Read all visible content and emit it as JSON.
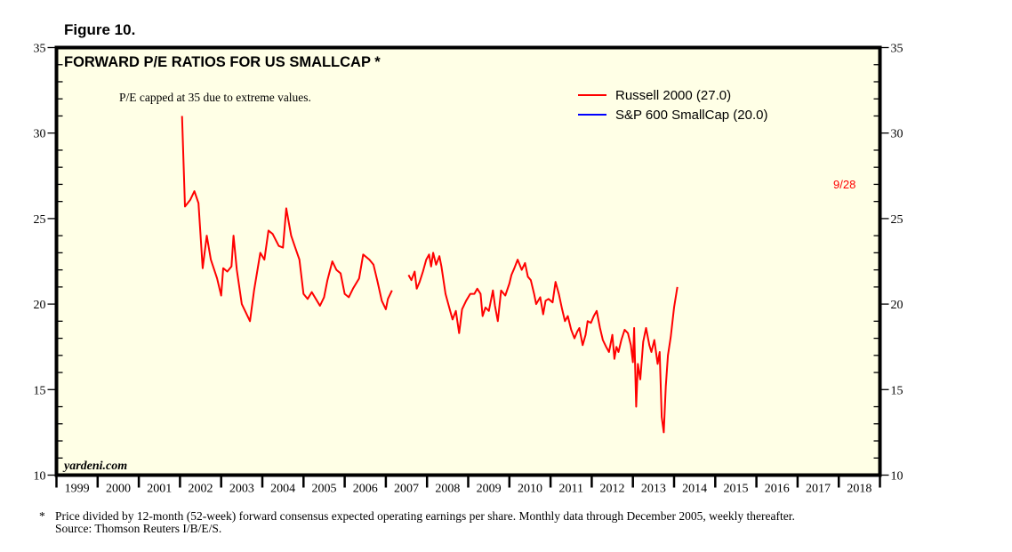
{
  "figure_label": "Figure 10.",
  "footnote": {
    "marker": "*",
    "line1": "Price divided by 12-month (52-week) forward consensus expected operating earnings per share. Monthly data through December 2005, weekly thereafter.",
    "line2": "Source: Thomson Reuters I/B/E/S."
  },
  "chart_data": {
    "type": "line",
    "title": "FORWARD P/E RATIOS FOR US SMALLCAP *",
    "annotation": "P/E capped at 35 due to extreme values.",
    "watermark": "yardeni.com",
    "end_label": "9/28",
    "xlabel": "",
    "ylabel": "",
    "xlim": [
      1999,
      2019
    ],
    "ylim": [
      10,
      35
    ],
    "x_tick_labels": [
      "1999",
      "2000",
      "2001",
      "2002",
      "2003",
      "2004",
      "2005",
      "2006",
      "2007",
      "2008",
      "2009",
      "2010",
      "2011",
      "2012",
      "2013",
      "2014",
      "2015",
      "2016",
      "2017",
      "2018"
    ],
    "y_ticks": [
      10,
      15,
      20,
      25,
      30,
      35
    ],
    "y_tick_labels": [
      "10",
      "15",
      "20",
      "25",
      "30",
      "35"
    ],
    "y_minor_step": 1,
    "grid": false,
    "legend_position": "top-right",
    "background_color": "#ffffe6",
    "series": [
      {
        "name": "Russell 2000 (27.0)",
        "color": "#ff0000",
        "segments": [
          [
            [
              2002.05,
              31.0
            ],
            [
              2002.12,
              25.7
            ],
            [
              2002.25,
              26.1
            ],
            [
              2002.35,
              26.6
            ],
            [
              2002.45,
              25.9
            ],
            [
              2002.55,
              22.1
            ],
            [
              2002.65,
              24.0
            ],
            [
              2002.75,
              22.6
            ],
            [
              2002.9,
              21.5
            ],
            [
              2003.0,
              20.5
            ],
            [
              2003.05,
              22.1
            ],
            [
              2003.15,
              21.9
            ],
            [
              2003.25,
              22.2
            ],
            [
              2003.3,
              24.0
            ],
            [
              2003.38,
              22.0
            ],
            [
              2003.5,
              20.0
            ],
            [
              2003.58,
              19.6
            ],
            [
              2003.7,
              19.0
            ],
            [
              2003.8,
              20.8
            ],
            [
              2003.95,
              23.0
            ],
            [
              2004.05,
              22.6
            ],
            [
              2004.15,
              24.3
            ],
            [
              2004.25,
              24.1
            ],
            [
              2004.4,
              23.4
            ],
            [
              2004.5,
              23.3
            ],
            [
              2004.58,
              25.6
            ],
            [
              2004.7,
              24.0
            ],
            [
              2004.8,
              23.3
            ],
            [
              2004.9,
              22.6
            ],
            [
              2005.0,
              20.6
            ],
            [
              2005.1,
              20.3
            ],
            [
              2005.2,
              20.7
            ],
            [
              2005.3,
              20.3
            ],
            [
              2005.4,
              19.9
            ],
            [
              2005.5,
              20.4
            ],
            [
              2005.58,
              21.4
            ],
            [
              2005.7,
              22.5
            ],
            [
              2005.8,
              22.0
            ],
            [
              2005.9,
              21.8
            ],
            [
              2006.0,
              20.6
            ],
            [
              2006.1,
              20.4
            ],
            [
              2006.2,
              20.9
            ],
            [
              2006.35,
              21.5
            ],
            [
              2006.45,
              22.9
            ],
            [
              2006.6,
              22.6
            ],
            [
              2006.7,
              22.3
            ],
            [
              2006.8,
              21.3
            ],
            [
              2006.9,
              20.2
            ],
            [
              2007.0,
              19.7
            ],
            [
              2007.05,
              20.3
            ],
            [
              2007.15,
              20.8
            ]
          ],
          [
            [
              2007.55,
              21.7
            ],
            [
              2007.62,
              21.4
            ],
            [
              2007.7,
              21.9
            ],
            [
              2007.75,
              20.9
            ],
            [
              2007.82,
              21.3
            ],
            [
              2007.9,
              21.9
            ],
            [
              2007.98,
              22.6
            ],
            [
              2008.05,
              22.9
            ],
            [
              2008.1,
              22.2
            ],
            [
              2008.15,
              23.0
            ],
            [
              2008.22,
              22.3
            ],
            [
              2008.3,
              22.8
            ],
            [
              2008.35,
              22.2
            ],
            [
              2008.45,
              20.6
            ],
            [
              2008.55,
              19.7
            ],
            [
              2008.62,
              19.1
            ],
            [
              2008.7,
              19.6
            ],
            [
              2008.78,
              18.3
            ],
            [
              2008.85,
              19.7
            ],
            [
              2008.95,
              20.2
            ],
            [
              2009.05,
              20.6
            ],
            [
              2009.15,
              20.6
            ],
            [
              2009.22,
              20.9
            ],
            [
              2009.3,
              20.6
            ],
            [
              2009.35,
              19.3
            ],
            [
              2009.42,
              19.8
            ],
            [
              2009.5,
              19.6
            ],
            [
              2009.6,
              20.8
            ],
            [
              2009.65,
              19.9
            ],
            [
              2009.72,
              19.0
            ],
            [
              2009.8,
              20.8
            ],
            [
              2009.9,
              20.5
            ],
            [
              2010.0,
              21.2
            ],
            [
              2010.05,
              21.7
            ],
            [
              2010.12,
              22.1
            ],
            [
              2010.2,
              22.6
            ],
            [
              2010.3,
              22.0
            ],
            [
              2010.38,
              22.4
            ],
            [
              2010.45,
              21.6
            ],
            [
              2010.52,
              21.4
            ],
            [
              2010.6,
              20.6
            ],
            [
              2010.65,
              20.0
            ],
            [
              2010.75,
              20.4
            ],
            [
              2010.82,
              19.4
            ],
            [
              2010.88,
              20.2
            ],
            [
              2010.95,
              20.3
            ],
            [
              2011.05,
              20.1
            ],
            [
              2011.12,
              21.3
            ],
            [
              2011.2,
              20.6
            ],
            [
              2011.28,
              19.7
            ],
            [
              2011.35,
              19.0
            ],
            [
              2011.42,
              19.3
            ],
            [
              2011.5,
              18.5
            ],
            [
              2011.58,
              18.0
            ],
            [
              2011.65,
              18.4
            ],
            [
              2011.7,
              18.6
            ],
            [
              2011.78,
              17.6
            ],
            [
              2011.85,
              18.2
            ],
            [
              2011.9,
              19.0
            ],
            [
              2011.98,
              18.9
            ],
            [
              2012.05,
              19.3
            ],
            [
              2012.12,
              19.6
            ],
            [
              2012.2,
              18.6
            ],
            [
              2012.27,
              17.9
            ],
            [
              2012.35,
              17.5
            ],
            [
              2012.42,
              17.2
            ],
            [
              2012.5,
              18.2
            ],
            [
              2012.55,
              16.8
            ],
            [
              2012.6,
              17.5
            ],
            [
              2012.65,
              17.2
            ],
            [
              2012.72,
              17.9
            ],
            [
              2012.8,
              18.5
            ],
            [
              2012.88,
              18.3
            ],
            [
              2012.95,
              17.6
            ],
            [
              2013.0,
              16.6
            ],
            [
              2013.03,
              18.6
            ],
            [
              2013.08,
              14.0
            ],
            [
              2013.12,
              16.5
            ],
            [
              2013.18,
              15.6
            ],
            [
              2013.25,
              17.8
            ],
            [
              2013.32,
              18.6
            ],
            [
              2013.4,
              17.6
            ],
            [
              2013.45,
              17.2
            ],
            [
              2013.52,
              17.9
            ],
            [
              2013.6,
              16.5
            ],
            [
              2013.65,
              17.2
            ],
            [
              2013.7,
              13.4
            ],
            [
              2013.75,
              12.5
            ],
            [
              2013.8,
              15.2
            ],
            [
              2013.85,
              17.0
            ],
            [
              2013.92,
              18.1
            ],
            [
              2014.0,
              19.8
            ],
            [
              2014.08,
              21.0
            ]
          ]
        ]
      },
      {
        "name": "S&P 600 SmallCap (20.0)",
        "color": "#0000ff",
        "segments": []
      }
    ]
  }
}
